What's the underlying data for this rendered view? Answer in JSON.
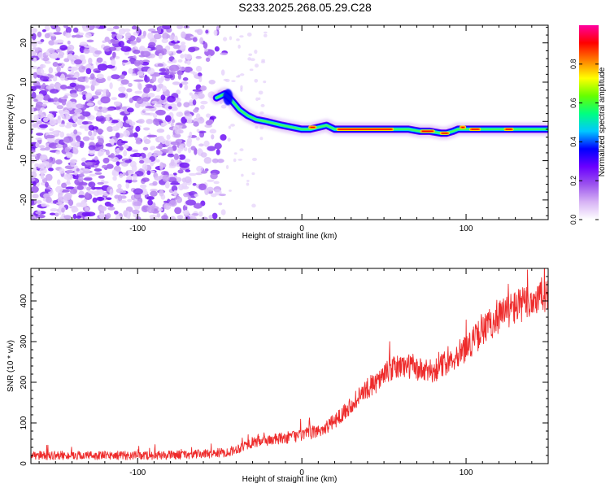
{
  "figure_title": "S233.2025.268.05.29.C28",
  "colors": {
    "axis": "#000000",
    "snr_line": "#ee2b2b",
    "background": "#ffffff"
  },
  "chart_data": [
    {
      "type": "heatmap",
      "title": "S233.2025.268.05.29.C28",
      "xlabel": "Height of straight line (km)",
      "ylabel": "Frequency (Hz)",
      "xlim": [
        -165,
        150
      ],
      "ylim": [
        -25,
        24.5
      ],
      "xticks": [
        -100,
        0,
        100
      ],
      "xtick_labels": [
        "-100",
        "0",
        "100"
      ],
      "yticks": [
        -20,
        -10,
        0,
        10,
        20
      ],
      "ytick_labels": [
        "-20",
        "-10",
        "0",
        "10",
        "20"
      ],
      "noise_region_x": [
        -165,
        -47
      ],
      "signal_trace": {
        "x": [
          -52,
          -47,
          -43,
          -38,
          -33,
          -28,
          -22,
          -17,
          -12,
          -6,
          0,
          5,
          10,
          15,
          20,
          25,
          35,
          45,
          55,
          65,
          72,
          78,
          85,
          88,
          92,
          95,
          100,
          105,
          112,
          120,
          130,
          140,
          150
        ],
        "y": [
          6,
          7,
          5.5,
          3,
          1.5,
          0.5,
          0,
          -0.5,
          -1,
          -1.5,
          -2,
          -2,
          -1.5,
          -1,
          -2,
          -2,
          -2,
          -2,
          -2,
          -2,
          -2.5,
          -2.5,
          -3,
          -3,
          -2.5,
          -2,
          -2,
          -2,
          -2,
          -2,
          -2,
          -2,
          -2
        ]
      },
      "hot_segments": [
        {
          "x0": 5,
          "x1": 8,
          "y": -1.5
        },
        {
          "x0": 22,
          "x1": 55,
          "y": -2
        },
        {
          "x0": 73,
          "x1": 80,
          "y": -2.5
        },
        {
          "x0": 85,
          "x1": 89,
          "y": -3
        },
        {
          "x0": 97,
          "x1": 99,
          "y": -1.5
        },
        {
          "x0": 103,
          "x1": 108,
          "y": -2
        },
        {
          "x0": 124,
          "x1": 128,
          "y": -2
        }
      ],
      "colorbar": {
        "label": "Normalized spectral amplitude",
        "range": [
          0,
          1
        ],
        "ticks": [
          0,
          0.2,
          0.4,
          0.6,
          0.8
        ],
        "tick_labels": [
          "0.0",
          "0.2",
          "0.4",
          "0.6",
          "0.8"
        ],
        "colormap": [
          "#ffffff",
          "#d7b3f5",
          "#9b52ee",
          "#6a00ff",
          "#0000ff",
          "#00c8ff",
          "#00ff80",
          "#66ff00",
          "#ffff00",
          "#ff8000",
          "#ff0000",
          "#ff00a0"
        ]
      }
    },
    {
      "type": "line",
      "xlabel": "Height of straight line (km)",
      "ylabel": "SNR (10 * v/v)",
      "xlim": [
        -165,
        150
      ],
      "ylim": [
        0,
        480
      ],
      "xticks": [
        -100,
        0,
        100
      ],
      "xtick_labels": [
        "-100",
        "0",
        "100"
      ],
      "yticks": [
        0,
        100,
        200,
        300,
        400
      ],
      "ytick_labels": [
        "0",
        "100",
        "200",
        "300",
        "400"
      ],
      "series": [
        {
          "name": "SNR",
          "x": [
            -165,
            -150,
            -130,
            -110,
            -90,
            -70,
            -55,
            -45,
            -40,
            -35,
            -30,
            -25,
            -20,
            -15,
            -10,
            -5,
            0,
            5,
            10,
            15,
            20,
            25,
            30,
            35,
            40,
            45,
            50,
            55,
            60,
            65,
            70,
            75,
            80,
            85,
            90,
            95,
            100,
            105,
            110,
            115,
            120,
            125,
            130,
            135,
            140,
            145,
            150
          ],
          "values": [
            20,
            20,
            20,
            20,
            20,
            22,
            25,
            28,
            35,
            45,
            52,
            55,
            58,
            60,
            63,
            67,
            70,
            75,
            80,
            90,
            105,
            125,
            145,
            165,
            185,
            200,
            218,
            232,
            240,
            240,
            232,
            226,
            228,
            240,
            255,
            270,
            285,
            305,
            325,
            345,
            362,
            375,
            385,
            392,
            400,
            410,
            420
          ]
        }
      ]
    }
  ]
}
